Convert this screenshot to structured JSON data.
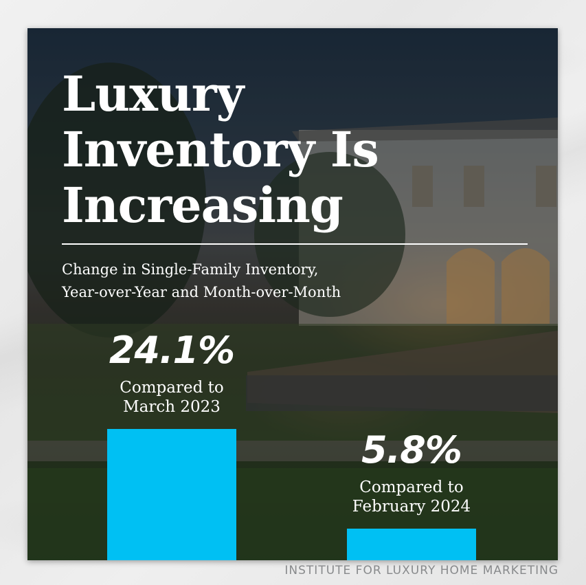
{
  "title_lines": [
    "Luxury",
    "Inventory Is",
    "Increasing"
  ],
  "subtitle_lines": [
    "Change in Single-Family Inventory,",
    "Year-over-Year and Month-over-Month"
  ],
  "chart_data": {
    "type": "bar",
    "categories": [
      "Compared to March 2023",
      "Compared to February 2024"
    ],
    "values": [
      24.1,
      5.8
    ],
    "value_labels": [
      "24.1%",
      "5.8%"
    ],
    "caption_lines": [
      [
        "Compared to",
        "March 2023"
      ],
      [
        "Compared to",
        "February 2024"
      ]
    ],
    "title": "Luxury Inventory Is Increasing",
    "subtitle": "Change in Single-Family Inventory, Year-over-Year and Month-over-Month",
    "xlabel": "",
    "ylabel": "",
    "ylim": [
      0,
      24.1
    ],
    "grid": false,
    "legend": "none",
    "bar_color": "#00c0f3"
  },
  "footer": "INSTITUTE FOR LUXURY HOME MARKETING",
  "colors": {
    "text": "#ffffff",
    "bar": "#00c0f3",
    "footer": "#888a8c"
  }
}
